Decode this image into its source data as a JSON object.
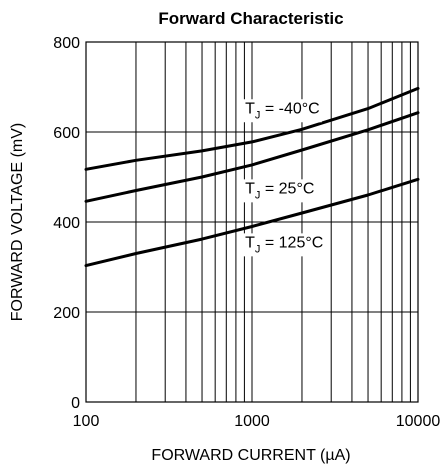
{
  "chart_data": {
    "type": "line",
    "title": "Forward Characteristic",
    "xlabel": "FORWARD CURRENT (µA)",
    "ylabel": "FORWARD VOLTAGE (mV)",
    "x_scale": "log",
    "xlim": [
      100,
      10000
    ],
    "ylim": [
      0,
      800
    ],
    "x_ticks": [
      100,
      1000,
      10000
    ],
    "x_tick_labels": [
      "100",
      "1000",
      "10000"
    ],
    "y_ticks": [
      0,
      200,
      400,
      600,
      800
    ],
    "y_tick_labels": [
      "0",
      "200",
      "400",
      "600",
      "800"
    ],
    "grid": true,
    "series": [
      {
        "label_main": "T",
        "label_sub": "J",
        "label_rest": " = -40°C",
        "label_anchor": {
          "x": 1200,
          "y": 655
        },
        "points": [
          [
            100,
            517
          ],
          [
            200,
            537
          ],
          [
            500,
            558
          ],
          [
            1000,
            578
          ],
          [
            2000,
            606
          ],
          [
            5000,
            652
          ],
          [
            10000,
            697
          ]
        ]
      },
      {
        "label_main": "T",
        "label_sub": "J",
        "label_rest": " = 25°C",
        "label_anchor": {
          "x": 1200,
          "y": 477
        },
        "points": [
          [
            100,
            446
          ],
          [
            200,
            470
          ],
          [
            500,
            500
          ],
          [
            1000,
            527
          ],
          [
            2000,
            560
          ],
          [
            5000,
            605
          ],
          [
            10000,
            643
          ]
        ]
      },
      {
        "label_main": "T",
        "label_sub": "J",
        "label_rest": " = 125°C",
        "label_anchor": {
          "x": 1200,
          "y": 357
        },
        "points": [
          [
            100,
            303
          ],
          [
            200,
            330
          ],
          [
            500,
            362
          ],
          [
            1000,
            390
          ],
          [
            2000,
            420
          ],
          [
            5000,
            460
          ],
          [
            10000,
            495
          ]
        ]
      }
    ]
  }
}
